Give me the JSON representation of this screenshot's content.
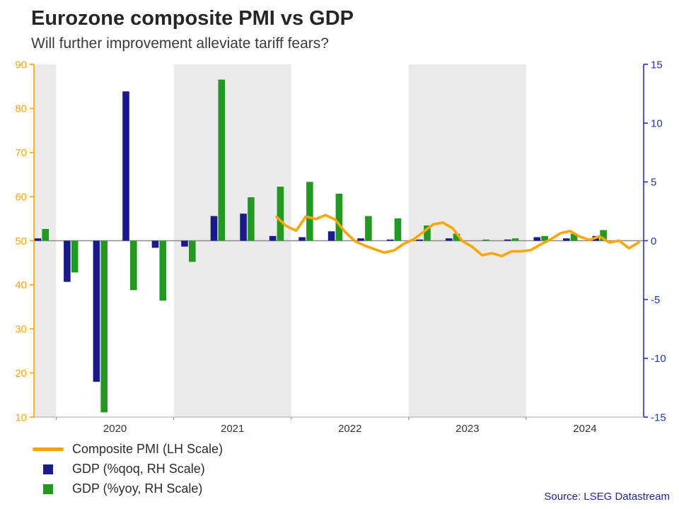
{
  "header": {
    "title": "Eurozone composite PMI vs GDP",
    "subtitle": "Will further improvement alleviate tariff fears?"
  },
  "source": "Source: LSEG Datastream",
  "legend": [
    {
      "label": "Composite PMI (LH Scale)",
      "type": "line",
      "color": "#FFA500"
    },
    {
      "label": "GDP (%qoq, RH Scale)",
      "type": "square",
      "color": "#1a1a8c"
    },
    {
      "label": "GDP (%yoy, RH Scale)",
      "type": "square",
      "color": "#229a22"
    }
  ],
  "chart_data": {
    "type": "bar+line",
    "title": "Eurozone composite PMI vs GDP",
    "subtitle": "Will further improvement alleviate tariff fears?",
    "background_bands": {
      "shaded_years": [
        2019,
        2021,
        2023
      ],
      "color": "#ebebeb"
    },
    "x_axis": {
      "start": 2019.81,
      "end": 2025.0,
      "year_labels": [
        "2020",
        "2021",
        "2022",
        "2023",
        "2024"
      ],
      "label_color": "#333333"
    },
    "left_axis": {
      "title": "Composite PMI",
      "min": 10,
      "max": 90,
      "ticks": [
        90,
        80,
        70,
        60,
        50,
        40,
        30,
        20,
        10
      ],
      "color": "#FFA500"
    },
    "right_axis": {
      "title": "GDP %",
      "min": -15,
      "max": 15,
      "ticks": [
        15,
        10,
        5,
        0,
        -5,
        -10,
        -15
      ],
      "color": "#2233bb"
    },
    "zero_line": {
      "left_value": 50,
      "right_value": 0,
      "color": "#8c8c8c"
    },
    "bars": {
      "categories": [
        "2019 Q4",
        "2020 Q1",
        "2020 Q2",
        "2020 Q3",
        "2020 Q4",
        "2021 Q1",
        "2021 Q2",
        "2021 Q3",
        "2021 Q4",
        "2022 Q1",
        "2022 Q2",
        "2022 Q3",
        "2022 Q4",
        "2023 Q1",
        "2023 Q2",
        "2023 Q3",
        "2023 Q4",
        "2024 Q1",
        "2024 Q2",
        "2024 Q3"
      ],
      "series": [
        {
          "name": "GDP (%qoq, RH Scale)",
          "axis": "right",
          "color": "#1a1a8c",
          "values": [
            0.2,
            -3.5,
            -12.0,
            12.7,
            -0.6,
            -0.5,
            2.1,
            2.3,
            0.4,
            0.3,
            0.8,
            0.2,
            0.1,
            0.1,
            0.2,
            0.0,
            0.1,
            0.3,
            0.2,
            0.4
          ]
        },
        {
          "name": "GDP (%yoy, RH Scale)",
          "axis": "right",
          "color": "#229a22",
          "values": [
            1.0,
            -2.7,
            -14.6,
            -4.2,
            -5.1,
            -1.8,
            13.7,
            3.7,
            4.6,
            5.0,
            4.0,
            2.1,
            1.9,
            1.3,
            0.6,
            0.1,
            0.2,
            0.4,
            0.6,
            0.9
          ]
        }
      ]
    },
    "line": {
      "name": "Composite PMI (LH Scale)",
      "axis": "left",
      "color": "#FFA500",
      "points": [
        [
          2021.875,
          55.4
        ],
        [
          2021.958,
          53.3
        ],
        [
          2022.042,
          52.3
        ],
        [
          2022.125,
          55.5
        ],
        [
          2022.208,
          54.9
        ],
        [
          2022.292,
          55.8
        ],
        [
          2022.375,
          54.8
        ],
        [
          2022.458,
          52.0
        ],
        [
          2022.542,
          49.9
        ],
        [
          2022.625,
          48.9
        ],
        [
          2022.708,
          48.1
        ],
        [
          2022.792,
          47.3
        ],
        [
          2022.875,
          47.8
        ],
        [
          2022.958,
          49.3
        ],
        [
          2023.042,
          50.3
        ],
        [
          2023.125,
          52.0
        ],
        [
          2023.208,
          53.7
        ],
        [
          2023.292,
          54.1
        ],
        [
          2023.375,
          52.8
        ],
        [
          2023.458,
          49.9
        ],
        [
          2023.542,
          48.6
        ],
        [
          2023.625,
          46.7
        ],
        [
          2023.708,
          47.2
        ],
        [
          2023.792,
          46.5
        ],
        [
          2023.875,
          47.6
        ],
        [
          2023.958,
          47.6
        ],
        [
          2024.042,
          47.9
        ],
        [
          2024.125,
          49.2
        ],
        [
          2024.208,
          50.3
        ],
        [
          2024.292,
          51.7
        ],
        [
          2024.375,
          52.2
        ],
        [
          2024.458,
          50.9
        ],
        [
          2024.542,
          50.2
        ],
        [
          2024.625,
          51.0
        ],
        [
          2024.708,
          49.6
        ],
        [
          2024.792,
          50.0
        ],
        [
          2024.875,
          48.3
        ],
        [
          2024.958,
          49.6
        ]
      ]
    }
  }
}
